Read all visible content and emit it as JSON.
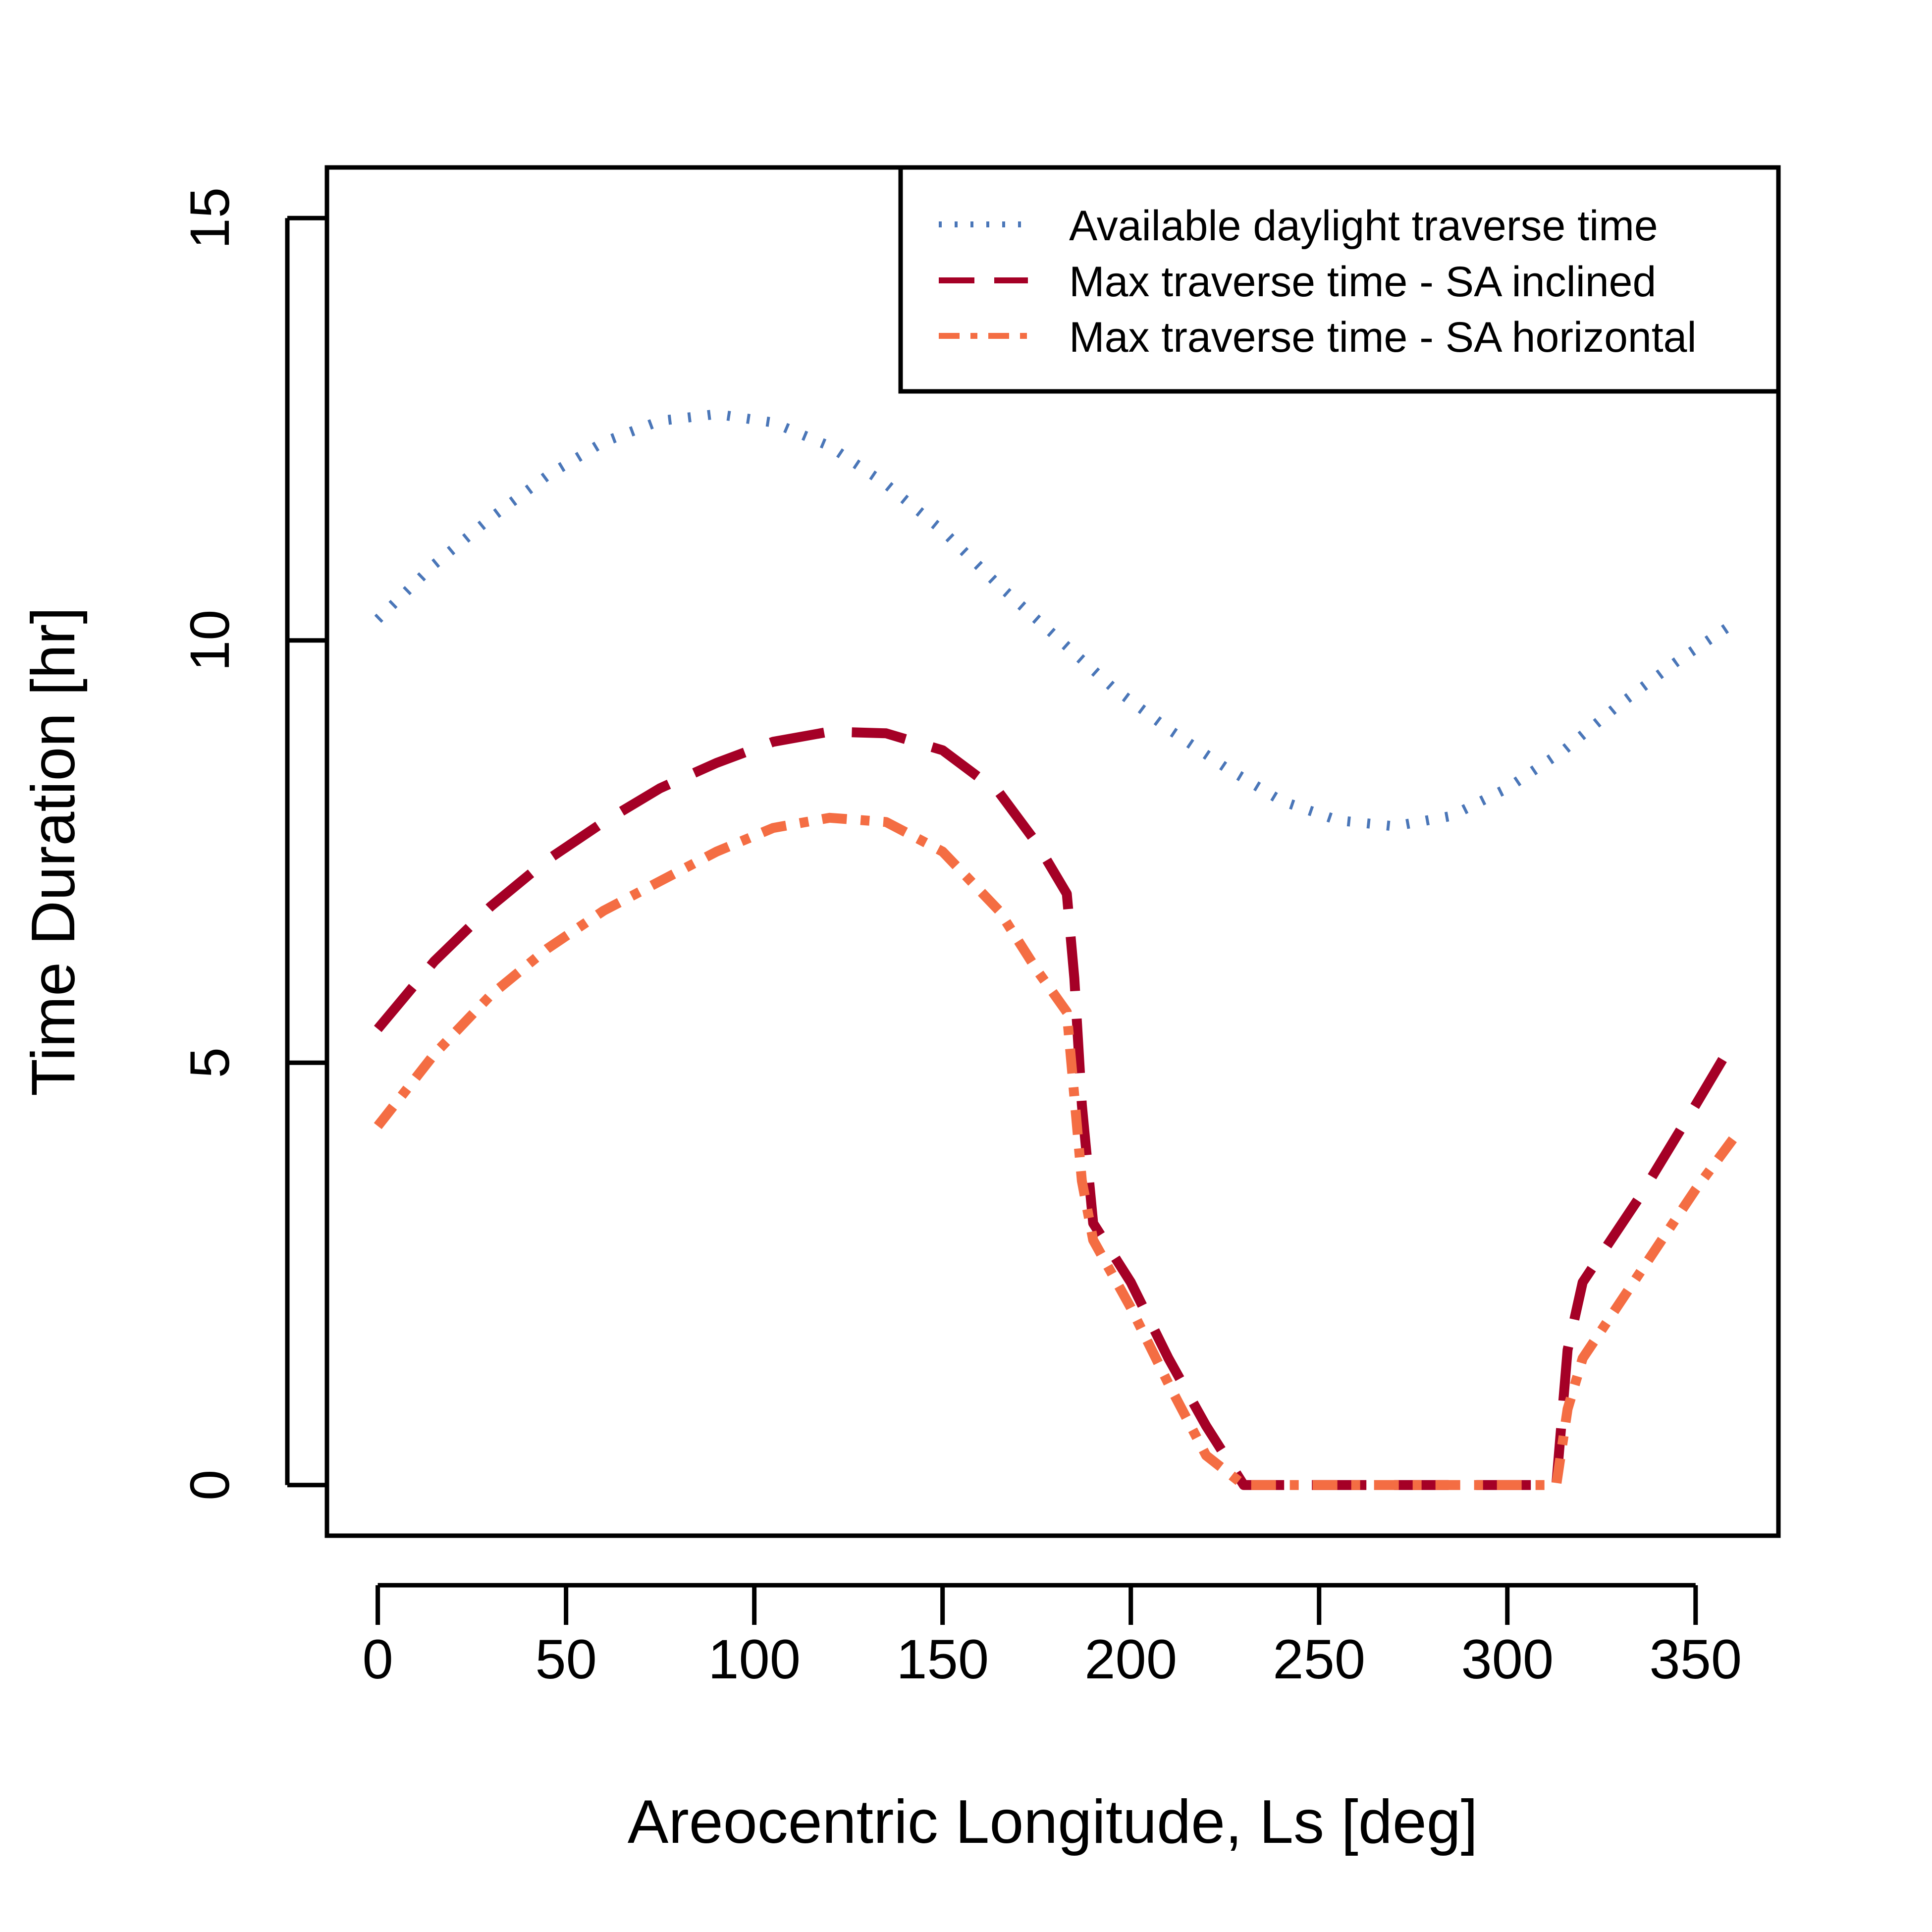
{
  "chart_data": {
    "type": "line",
    "title": "",
    "xlabel": "Areocentric Longitude, Ls [deg]",
    "ylabel": "Time Duration [hr]",
    "xlim": [
      -13.5,
      372
    ],
    "ylim": [
      -0.6,
      15.6
    ],
    "xticks": [
      0,
      50,
      100,
      150,
      200,
      250,
      300,
      350
    ],
    "yticks": [
      0,
      5,
      10,
      15
    ],
    "grid": false,
    "legend_position": "top-right",
    "series": [
      {
        "name": "Available daylight traverse time",
        "color": "#4a76b8",
        "style": "dotted",
        "x": [
          0,
          15,
          30,
          45,
          60,
          75,
          90,
          105,
          120,
          135,
          150,
          165,
          180,
          195,
          210,
          225,
          240,
          255,
          270,
          285,
          300,
          315,
          330,
          345,
          360
        ],
        "y": [
          10.25,
          10.9,
          11.45,
          11.95,
          12.35,
          12.6,
          12.68,
          12.58,
          12.3,
          11.85,
          11.3,
          10.65,
          10.05,
          9.45,
          8.95,
          8.5,
          8.1,
          7.87,
          7.8,
          7.92,
          8.25,
          8.7,
          9.25,
          9.75,
          10.2
        ]
      },
      {
        "name": "Max traverse time - SA inclined",
        "color": "#a50026",
        "style": "dashed",
        "x": [
          0,
          15,
          30,
          45,
          60,
          75,
          90,
          105,
          120,
          135,
          150,
          165,
          175,
          183,
          185,
          187,
          190,
          200,
          210,
          220,
          230,
          260,
          295,
          313,
          316,
          320,
          335,
          350,
          360
        ],
        "y": [
          5.4,
          6.2,
          6.85,
          7.4,
          7.85,
          8.25,
          8.55,
          8.8,
          8.92,
          8.9,
          8.7,
          8.2,
          7.6,
          7.0,
          6.0,
          4.5,
          3.1,
          2.4,
          1.5,
          0.7,
          0.0,
          0.0,
          0.0,
          0.0,
          1.6,
          2.4,
          3.4,
          4.5,
          5.25
        ]
      },
      {
        "name": "Max traverse time - SA horizontal",
        "color": "#f46d43",
        "style": "dashdot",
        "x": [
          0,
          15,
          30,
          45,
          60,
          75,
          90,
          105,
          120,
          135,
          150,
          165,
          175,
          183,
          185,
          187,
          190,
          200,
          210,
          220,
          230,
          260,
          295,
          313,
          316,
          320,
          335,
          350,
          360
        ],
        "y": [
          4.25,
          5.1,
          5.8,
          6.35,
          6.8,
          7.15,
          7.5,
          7.78,
          7.9,
          7.85,
          7.5,
          6.8,
          6.1,
          5.6,
          4.6,
          3.6,
          2.9,
          2.1,
          1.2,
          0.35,
          0.0,
          0.0,
          0.0,
          0.0,
          0.9,
          1.5,
          2.5,
          3.5,
          4.1
        ]
      }
    ]
  }
}
